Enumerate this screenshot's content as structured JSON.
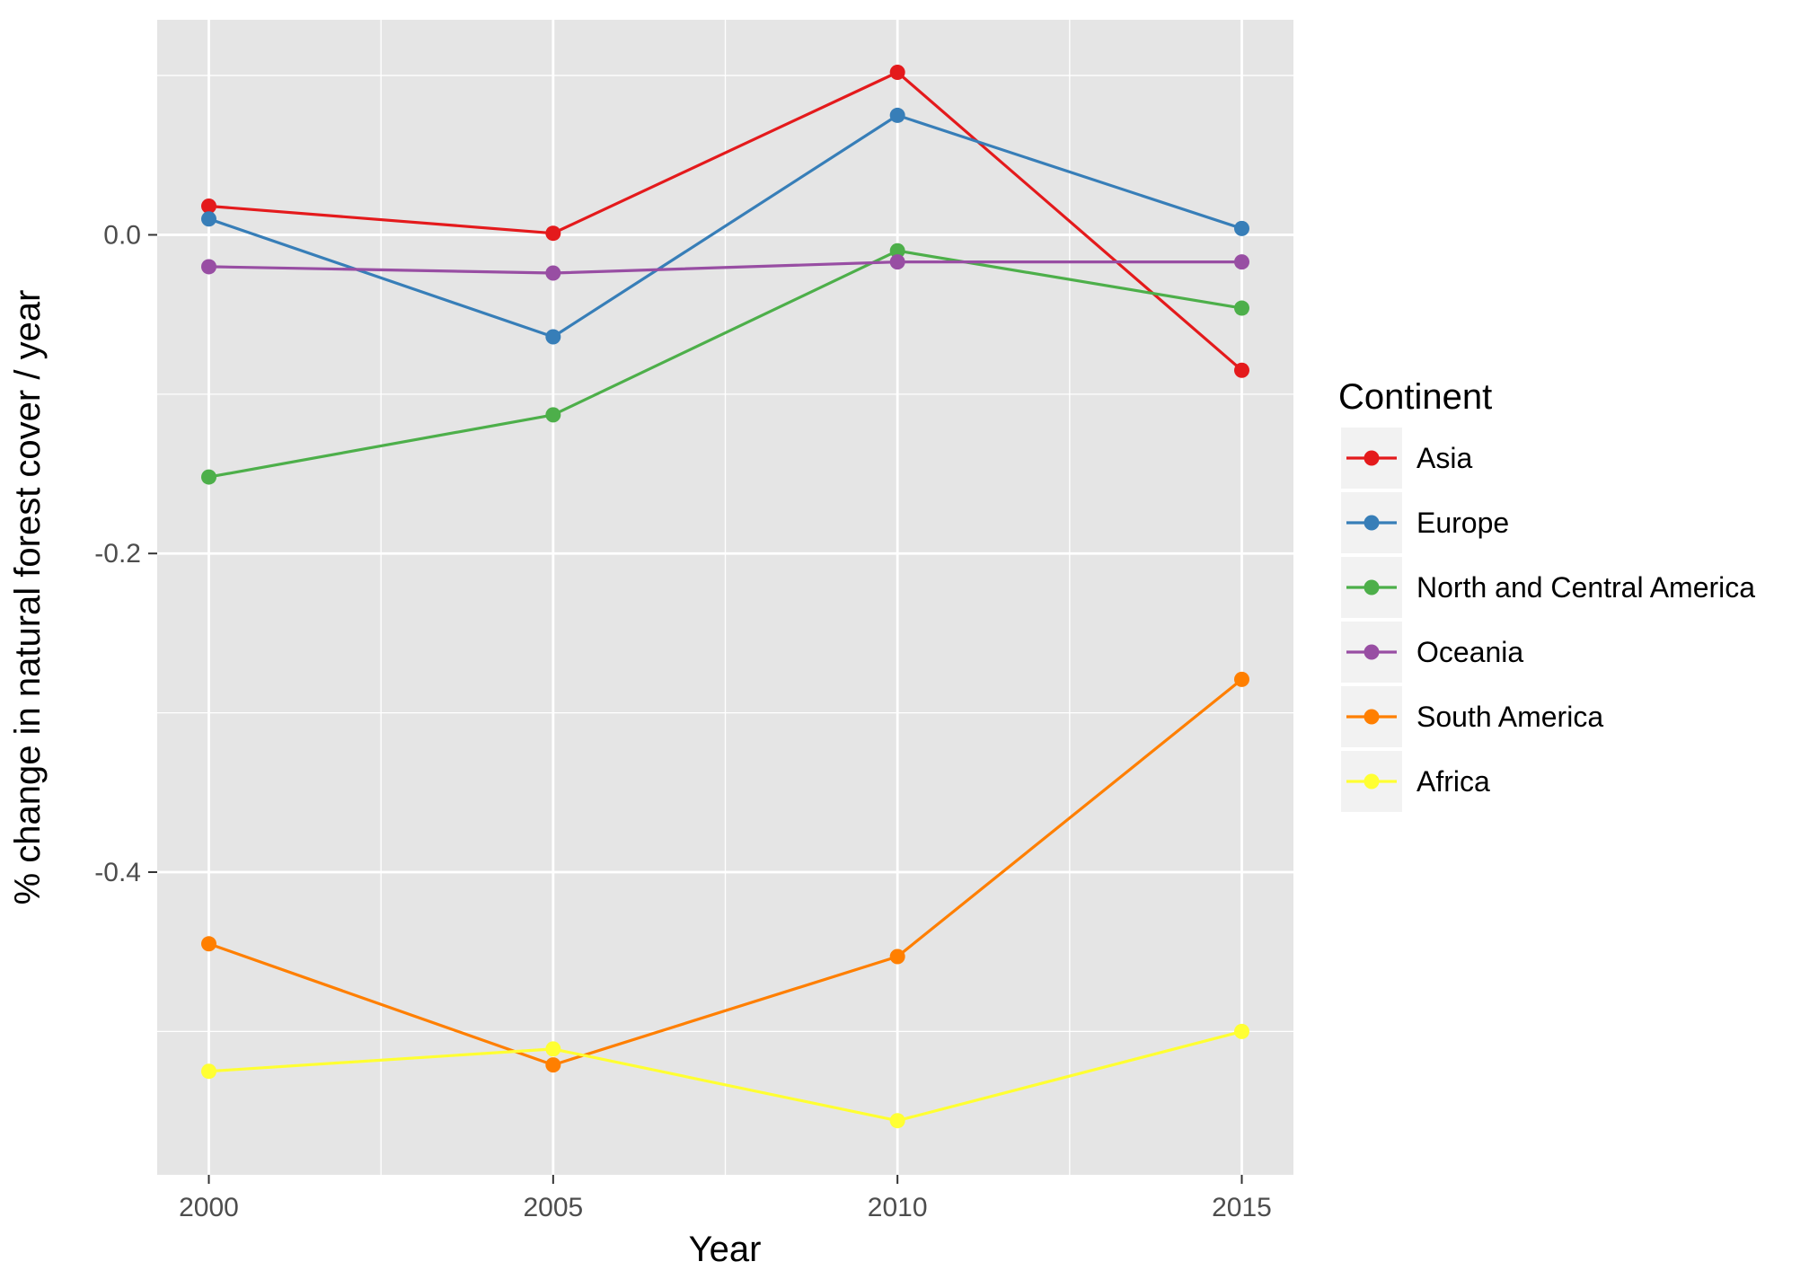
{
  "chart_data": {
    "type": "line",
    "title": "",
    "xlabel": "Year",
    "ylabel": "% change in natural forest cover / year",
    "x": [
      2000,
      2005,
      2010,
      2015
    ],
    "x_ticks": [
      "2000",
      "2005",
      "2010",
      "2015"
    ],
    "y_ticks": [
      "0.0",
      "-0.2",
      "-0.4"
    ],
    "y_tick_values": [
      0.0,
      -0.2,
      -0.4
    ],
    "xlim": [
      1999.25,
      2015.75
    ],
    "ylim": [
      -0.59,
      0.135
    ],
    "grid": true,
    "background": "#e5e5e5",
    "legend": {
      "title": "Continent",
      "placement": "right"
    },
    "series": [
      {
        "name": "Asia",
        "color": "#e41a1c",
        "values": [
          0.018,
          0.001,
          0.102,
          -0.085
        ]
      },
      {
        "name": "Europe",
        "color": "#377eb8",
        "values": [
          0.01,
          -0.064,
          0.075,
          0.004
        ]
      },
      {
        "name": "North and Central America",
        "color": "#4daf4a",
        "values": [
          -0.152,
          -0.113,
          -0.01,
          -0.046
        ]
      },
      {
        "name": "Oceania",
        "color": "#984ea3",
        "values": [
          -0.02,
          -0.024,
          -0.017,
          -0.017
        ]
      },
      {
        "name": "South America",
        "color": "#ff7f00",
        "values": [
          -0.445,
          -0.521,
          -0.453,
          -0.279
        ]
      },
      {
        "name": "Africa",
        "color": "#ffff33",
        "values": [
          -0.525,
          -0.511,
          -0.556,
          -0.5
        ]
      }
    ]
  }
}
